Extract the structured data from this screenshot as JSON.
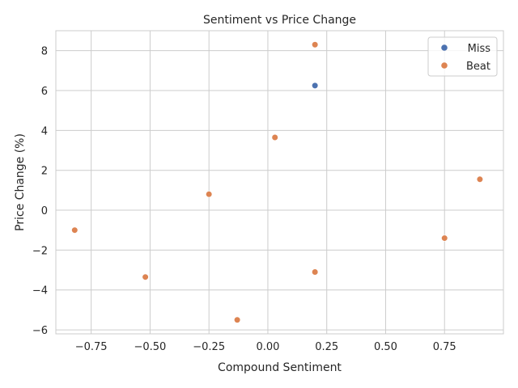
{
  "chart_data": {
    "type": "scatter",
    "title": "Sentiment vs Price Change",
    "xlabel": "Compound Sentiment",
    "ylabel": "Price Change (%)",
    "xlim": [
      -0.9,
      1.0
    ],
    "ylim": [
      -6.2,
      9.0
    ],
    "xticks": [
      -0.75,
      -0.5,
      -0.25,
      0.0,
      0.25,
      0.5,
      0.75
    ],
    "xtick_labels": [
      "−0.75",
      "−0.50",
      "−0.25",
      "0.00",
      "0.25",
      "0.50",
      "0.75"
    ],
    "yticks": [
      -6,
      -4,
      -2,
      0,
      2,
      4,
      6,
      8
    ],
    "ytick_labels": [
      "−6",
      "−4",
      "−2",
      "0",
      "2",
      "4",
      "6",
      "8"
    ],
    "grid": true,
    "legend_position": "top-right",
    "series": [
      {
        "name": "Miss",
        "color": "#4c72b0",
        "points": [
          {
            "x": 0.2,
            "y": 6.25
          }
        ]
      },
      {
        "name": "Beat",
        "color": "#dd8452",
        "points": [
          {
            "x": 0.2,
            "y": 8.3
          },
          {
            "x": 0.03,
            "y": 3.65
          },
          {
            "x": 0.9,
            "y": 1.55
          },
          {
            "x": -0.25,
            "y": 0.8
          },
          {
            "x": -0.82,
            "y": -1.0
          },
          {
            "x": 0.75,
            "y": -1.4
          },
          {
            "x": -0.52,
            "y": -3.35
          },
          {
            "x": 0.2,
            "y": -3.1
          },
          {
            "x": -0.13,
            "y": -5.5
          }
        ]
      }
    ]
  }
}
